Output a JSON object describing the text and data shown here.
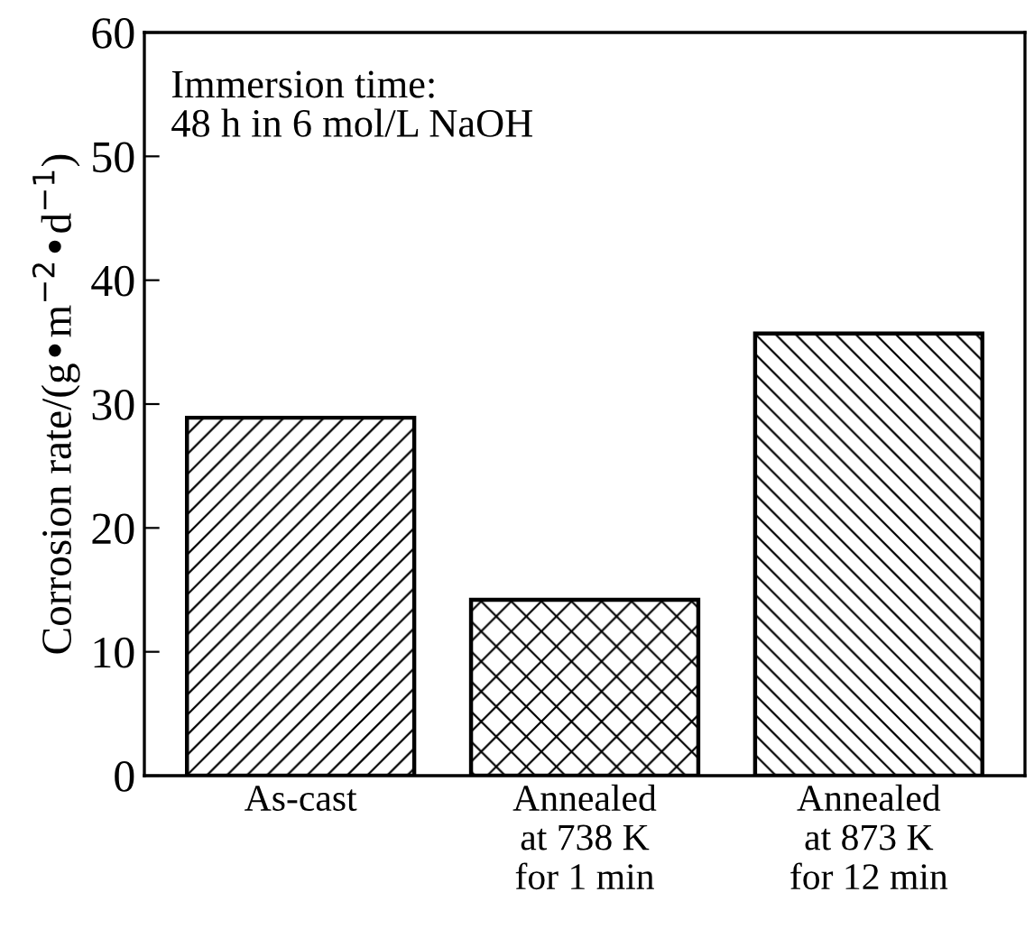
{
  "chart_data": {
    "type": "bar",
    "categories": [
      "As-cast",
      "Annealed\nat 738 K\nfor 1 min",
      "Annealed\nat 873 K\nfor 12 min"
    ],
    "values": [
      28.9,
      14.2,
      35.7
    ],
    "colors": [
      "#000000",
      "#000000",
      "#000000"
    ],
    "ylabel": "Corrosion rate/(g•m$^{−2}$•d$^{−1}$)",
    "ylim": [
      0,
      60
    ],
    "yticks": [
      0,
      10,
      20,
      30,
      40,
      50,
      60
    ],
    "annotations": [
      "Immersion time:\n48 h in 6 mol/L NaOH"
    ],
    "grid": false,
    "legend": false
  }
}
